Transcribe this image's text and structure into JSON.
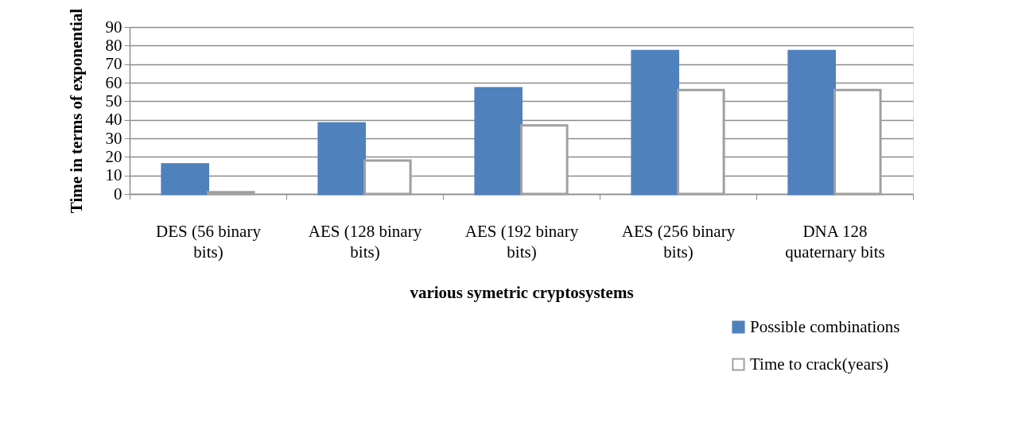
{
  "chart_data": {
    "type": "bar",
    "xlabel": "various symetric cryptosystems",
    "ylabel": "Time in terms of exponential",
    "categories": [
      "DES (56 binary bits)",
      "AES (128 binary bits)",
      "AES (192 binary bits)",
      "AES (256 binary bits)",
      "DNA 128 quaternary bits"
    ],
    "series": [
      {
        "name": "Possible combinations",
        "color": "#4f81bd",
        "values": [
          16,
          38,
          57,
          77,
          77
        ]
      },
      {
        "name": "Time to crack(years)",
        "color": "#ffffff",
        "values": [
          1,
          18,
          37,
          56,
          56
        ]
      }
    ],
    "ylim": [
      0,
      90
    ],
    "yticks": [
      0,
      10,
      20,
      30,
      40,
      50,
      60,
      70,
      80,
      90
    ],
    "grid": "y",
    "legend": "bottom right"
  }
}
